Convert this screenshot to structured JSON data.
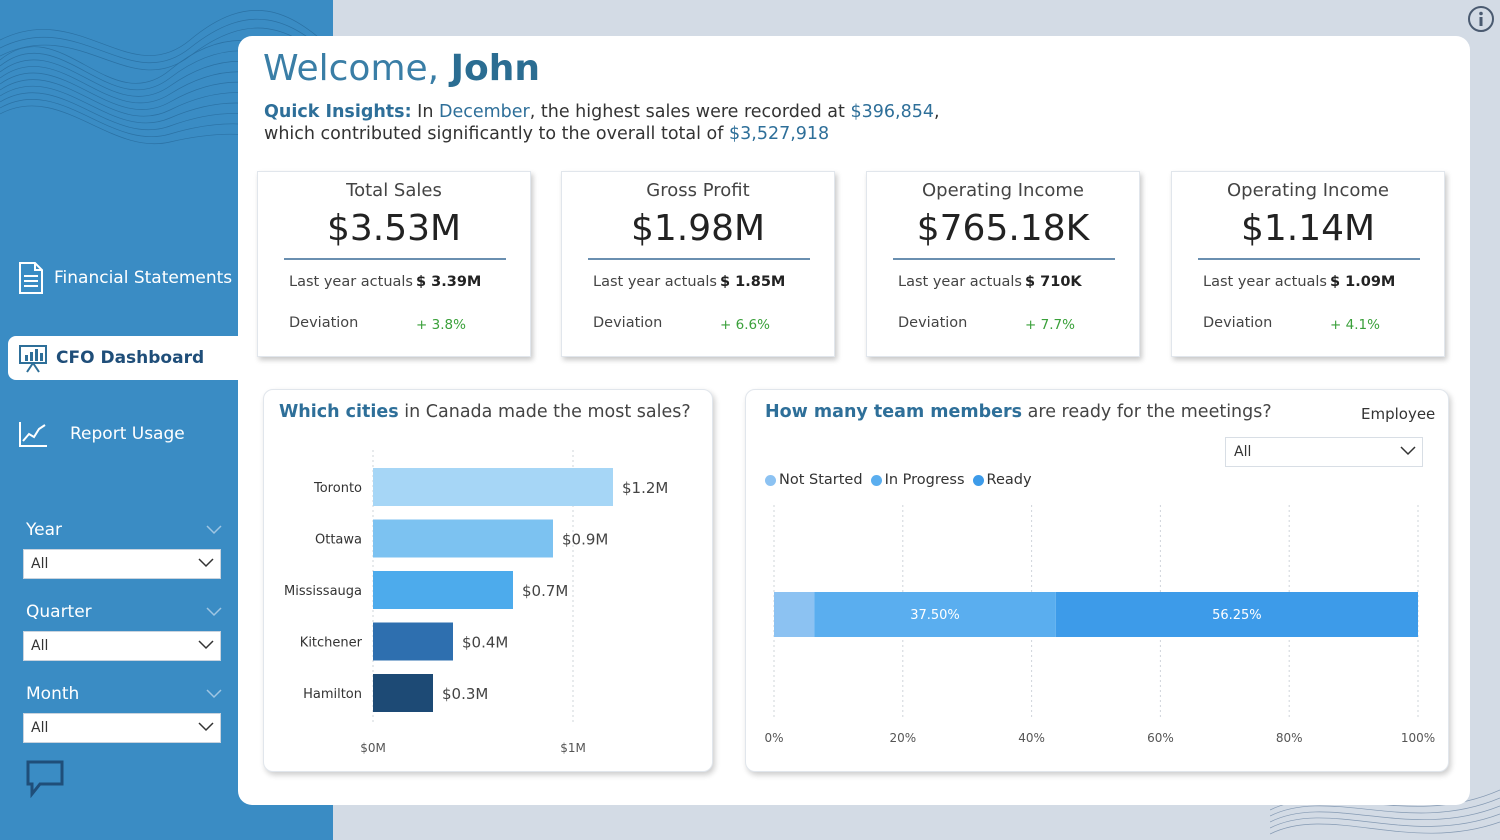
{
  "sidebar": {
    "nav": [
      {
        "label": "Financial Statements",
        "icon": "document-icon"
      },
      {
        "label": "CFO Dashboard",
        "icon": "presentation-icon",
        "active": true
      },
      {
        "label": "Report Usage",
        "icon": "line-chart-icon"
      }
    ],
    "filters": [
      {
        "label": "Year",
        "value": "All"
      },
      {
        "label": "Quarter",
        "value": "All"
      },
      {
        "label": "Month",
        "value": "All"
      }
    ]
  },
  "header": {
    "welcome_prefix": "Welcome,",
    "user_name": "John",
    "insights": {
      "label": "Quick Insights:",
      "t1": " In ",
      "month": "December",
      "t2": ", the highest sales were recorded at ",
      "top_value": "$396,854",
      "t3": ",",
      "t4": "which contributed significantly to the overall total of ",
      "total_value": "$3,527,918"
    }
  },
  "kpis": [
    {
      "title": "Total Sales",
      "value": "$3.53M",
      "last_year_label": "Last year actuals",
      "last_year_value": "$ 3.39M",
      "deviation_label": "Deviation",
      "deviation_value": "+ 3.8%"
    },
    {
      "title": "Gross Profit",
      "value": "$1.98M",
      "last_year_label": "Last year actuals",
      "last_year_value": "$ 1.85M",
      "deviation_label": "Deviation",
      "deviation_value": "+ 6.6%"
    },
    {
      "title": "Operating Income",
      "value": "$765.18K",
      "last_year_label": "Last year actuals",
      "last_year_value": "$ 710K",
      "deviation_label": "Deviation",
      "deviation_value": "+ 7.7%"
    },
    {
      "title": "Operating Income",
      "value": "$1.14M",
      "last_year_label": "Last year actuals",
      "last_year_value": "$ 1.09M",
      "deviation_label": "Deviation",
      "deviation_value": "+ 4.1%"
    }
  ],
  "cities_card": {
    "title_bold": "Which cities",
    "title_rest": " in Canada made the most sales?"
  },
  "team_card": {
    "title_bold": "How many team members",
    "title_rest": " are ready for the meetings?",
    "employee_label": "Employee",
    "employee_value": "All",
    "legend": [
      {
        "label": "Not Started",
        "color": "#8cc2f2"
      },
      {
        "label": "In Progress",
        "color": "#5aaeef"
      },
      {
        "label": "Ready",
        "color": "#3d9be9"
      }
    ]
  },
  "chart_data": [
    {
      "type": "bar",
      "orientation": "horizontal",
      "categories": [
        "Toronto",
        "Ottawa",
        "Mississauga",
        "Kitchener",
        "Hamilton"
      ],
      "values": [
        1.2,
        0.9,
        0.7,
        0.4,
        0.3
      ],
      "data_labels": [
        "$1.2M",
        "$0.9M",
        "$0.7M",
        "$0.4M",
        "$0.3M"
      ],
      "colors": [
        "#a6d6f6",
        "#7cc2f1",
        "#4dabec",
        "#2e6faf",
        "#1d4a75"
      ],
      "x_ticks": [
        {
          "v": 0,
          "label": "$0M"
        },
        {
          "v": 1,
          "label": "$1M"
        }
      ],
      "xlim": [
        0,
        1.53
      ],
      "grid": true
    },
    {
      "type": "bar",
      "orientation": "horizontal",
      "stacked": "100%",
      "series": [
        {
          "name": "Not Started",
          "values": [
            6.25
          ],
          "label": "",
          "color": "#8cc2f2"
        },
        {
          "name": "In Progress",
          "values": [
            37.5
          ],
          "label": "37.50%",
          "color": "#5aaeef"
        },
        {
          "name": "Ready",
          "values": [
            56.25
          ],
          "label": "56.25%",
          "color": "#3d9be9"
        }
      ],
      "x_ticks": [
        "0%",
        "20%",
        "40%",
        "60%",
        "80%",
        "100%"
      ],
      "xlim": [
        0,
        100
      ],
      "grid": true
    }
  ]
}
